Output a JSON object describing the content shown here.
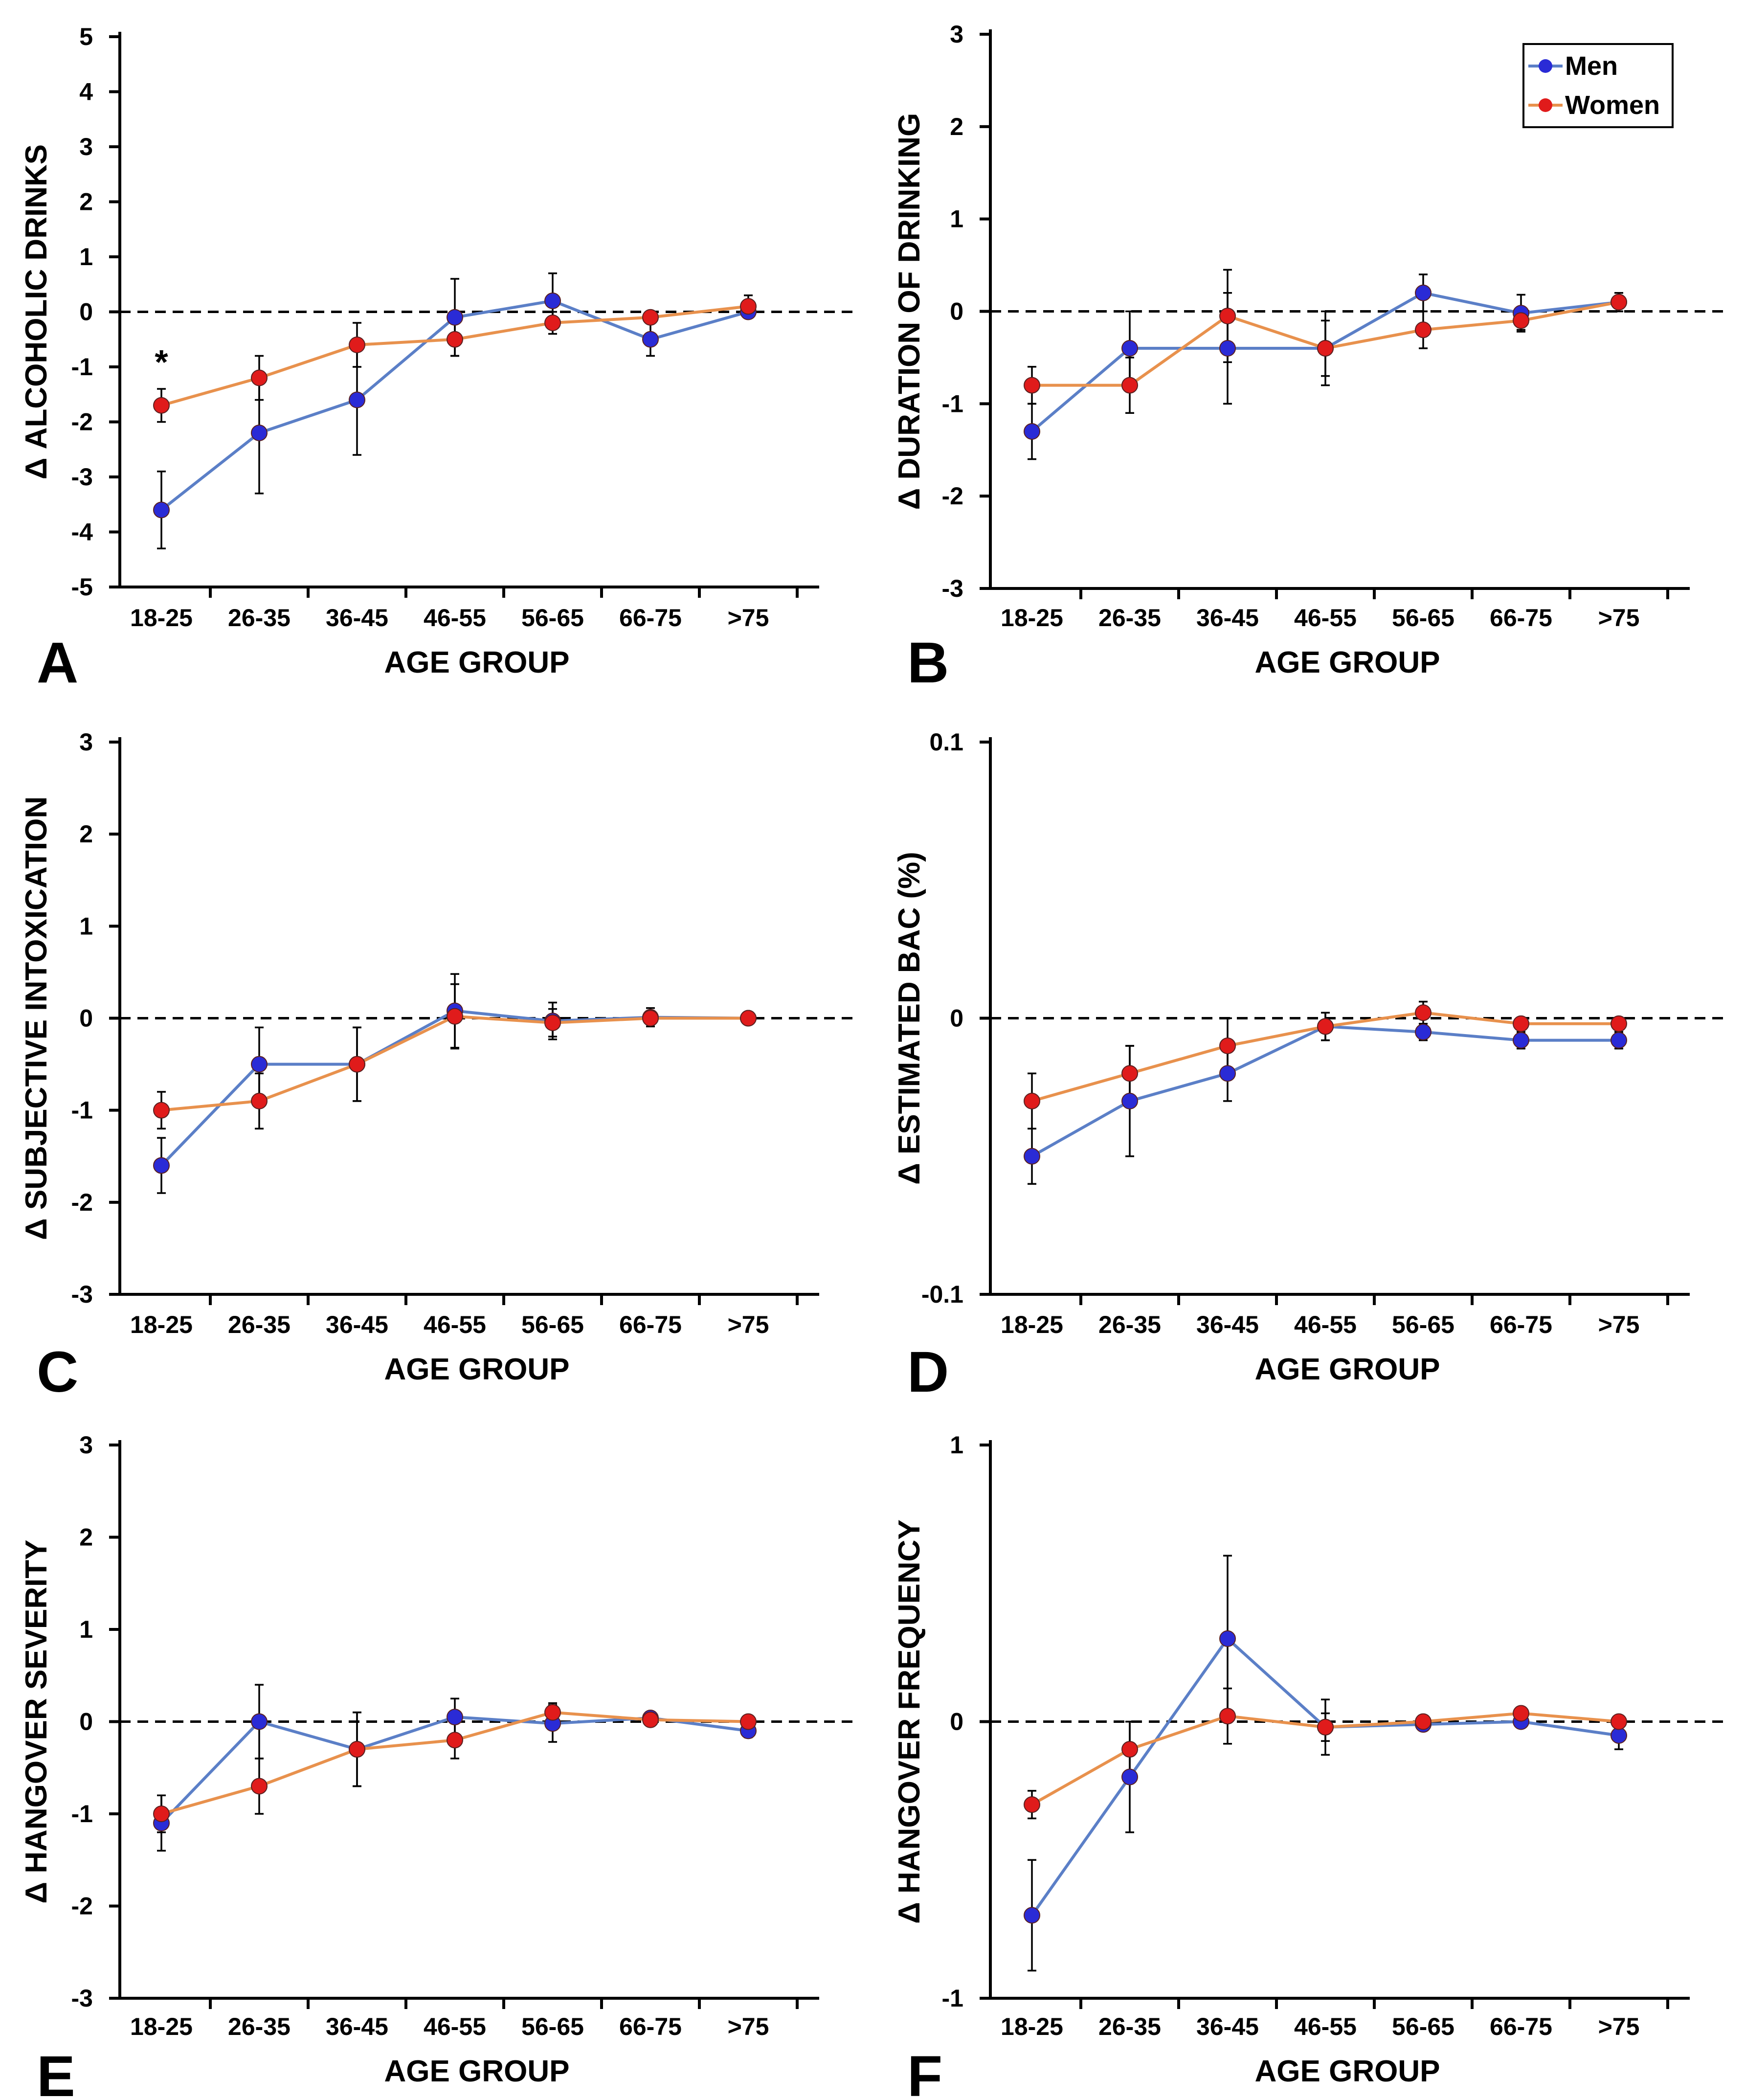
{
  "colors": {
    "men": "#5b7fc7",
    "men_marker": "#2a2bd6",
    "women": "#e8914d",
    "women_marker": "#e01b1b",
    "axis": "#000000"
  },
  "legend": {
    "men": "Men",
    "women": "Women"
  },
  "chart_data": [
    {
      "type": "line",
      "panel": "A",
      "ylabel": "Δ ALCOHOLIC DRINKS",
      "xlabel": "AGE GROUP",
      "categories": [
        "18-25",
        "26-35",
        "36-45",
        "46-55",
        "56-65",
        "66-75",
        ">75"
      ],
      "ylim": [
        -5,
        5
      ],
      "yticks": [
        "5",
        "4",
        "3",
        "2",
        "1",
        "0",
        "-1",
        "-2",
        "-3",
        "-4",
        "-5"
      ],
      "annotation": "*",
      "series": [
        {
          "name": "Men",
          "values": [
            -3.6,
            -2.2,
            -1.6,
            -0.1,
            0.2,
            -0.5,
            0.0
          ],
          "err": [
            0.7,
            1.1,
            1.0,
            0.7,
            0.5,
            0.3,
            0.1
          ]
        },
        {
          "name": "Women",
          "values": [
            -1.7,
            -1.2,
            -0.6,
            -0.5,
            -0.2,
            -0.1,
            0.1
          ],
          "err": [
            0.3,
            0.4,
            0.4,
            0.3,
            0.2,
            0.1,
            0.2
          ]
        }
      ]
    },
    {
      "type": "line",
      "panel": "B",
      "ylabel": "Δ DURATION OF DRINKING",
      "xlabel": "AGE GROUP",
      "categories": [
        "18-25",
        "26-35",
        "36-45",
        "46-55",
        "56-65",
        "66-75",
        ">75"
      ],
      "ylim": [
        -3,
        3
      ],
      "yticks": [
        "3",
        "2",
        "1",
        "0",
        "-1",
        "-2",
        "-3"
      ],
      "series": [
        {
          "name": "Men",
          "values": [
            -1.3,
            -0.4,
            -0.4,
            -0.4,
            0.2,
            -0.02,
            0.1
          ],
          "err": [
            0.3,
            0.4,
            0.6,
            0.4,
            0.2,
            0.2,
            0.1
          ]
        },
        {
          "name": "Women",
          "values": [
            -0.8,
            -0.8,
            -0.05,
            -0.4,
            -0.2,
            -0.1,
            0.1
          ],
          "err": [
            0.2,
            0.3,
            0.5,
            0.3,
            0.2,
            0.1,
            0.1
          ]
        }
      ]
    },
    {
      "type": "line",
      "panel": "C",
      "ylabel": "Δ SUBJECTIVE INTOXICATION",
      "xlabel": "AGE GROUP",
      "categories": [
        "18-25",
        "26-35",
        "36-45",
        "46-55",
        "56-65",
        "66-75",
        ">75"
      ],
      "ylim": [
        -3,
        3
      ],
      "yticks": [
        "3",
        "2",
        "1",
        "0",
        "-1",
        "-2",
        "-3"
      ],
      "series": [
        {
          "name": "Men",
          "values": [
            -1.6,
            -0.5,
            -0.5,
            0.08,
            -0.03,
            0.01,
            0.0
          ],
          "err": [
            0.3,
            0.4,
            0.4,
            0.4,
            0.2,
            0.1,
            0.03
          ]
        },
        {
          "name": "Women",
          "values": [
            -1.0,
            -0.9,
            -0.5,
            0.02,
            -0.05,
            0.0,
            0.0
          ],
          "err": [
            0.2,
            0.3,
            0.4,
            0.35,
            0.15,
            0.05,
            0.03
          ]
        }
      ]
    },
    {
      "type": "line",
      "panel": "D",
      "ylabel": "Δ ESTIMATED BAC (%)",
      "xlabel": "AGE GROUP",
      "categories": [
        "18-25",
        "26-35",
        "36-45",
        "46-55",
        "56-65",
        "66-75",
        ">75"
      ],
      "ylim": [
        -0.1,
        0.1
      ],
      "yticks": [
        "0.1",
        "0",
        "-0.1"
      ],
      "series": [
        {
          "name": "Men",
          "values": [
            -0.05,
            -0.03,
            -0.02,
            -0.003,
            -0.005,
            -0.008,
            -0.008
          ],
          "err": [
            0.01,
            0.02,
            0.01,
            0.005,
            0.003,
            0.003,
            0.003
          ]
        },
        {
          "name": "Women",
          "values": [
            -0.03,
            -0.02,
            -0.01,
            -0.003,
            0.002,
            -0.002,
            -0.002
          ],
          "err": [
            0.01,
            0.01,
            0.01,
            0.005,
            0.004,
            0.002,
            0.002
          ]
        }
      ]
    },
    {
      "type": "line",
      "panel": "E",
      "ylabel": "Δ HANGOVER SEVERITY",
      "xlabel": "AGE GROUP",
      "categories": [
        "18-25",
        "26-35",
        "36-45",
        "46-55",
        "56-65",
        "66-75",
        ">75"
      ],
      "ylim": [
        -3,
        3
      ],
      "yticks": [
        "3",
        "2",
        "1",
        "0",
        "-1",
        "-2",
        "-3"
      ],
      "series": [
        {
          "name": "Men",
          "values": [
            -1.1,
            0.0,
            -0.3,
            0.05,
            -0.02,
            0.04,
            -0.1
          ],
          "err": [
            0.3,
            0.4,
            0.4,
            0.2,
            0.2,
            0.05,
            0.07
          ]
        },
        {
          "name": "Women",
          "values": [
            -1.0,
            -0.7,
            -0.3,
            -0.2,
            0.1,
            0.02,
            0.0
          ],
          "err": [
            0.2,
            0.3,
            0.4,
            0.2,
            0.1,
            0.05,
            0.05
          ]
        }
      ]
    },
    {
      "type": "line",
      "panel": "F",
      "ylabel": "Δ HANGOVER FREQUENCY",
      "xlabel": "AGE GROUP",
      "categories": [
        "18-25",
        "26-35",
        "36-45",
        "46-55",
        "56-65",
        "66-75",
        ">75"
      ],
      "ylim": [
        -1,
        1
      ],
      "yticks": [
        "1",
        "0",
        "-1"
      ],
      "series": [
        {
          "name": "Men",
          "values": [
            -0.7,
            -0.2,
            0.3,
            -0.02,
            -0.01,
            0.0,
            -0.05
          ],
          "err": [
            0.2,
            0.2,
            0.3,
            0.1,
            0.02,
            0.02,
            0.05
          ]
        },
        {
          "name": "Women",
          "values": [
            -0.3,
            -0.1,
            0.02,
            -0.02,
            0.0,
            0.03,
            0.0
          ],
          "err": [
            0.05,
            0.1,
            0.1,
            0.05,
            0.02,
            0.02,
            0.02
          ]
        }
      ]
    }
  ]
}
